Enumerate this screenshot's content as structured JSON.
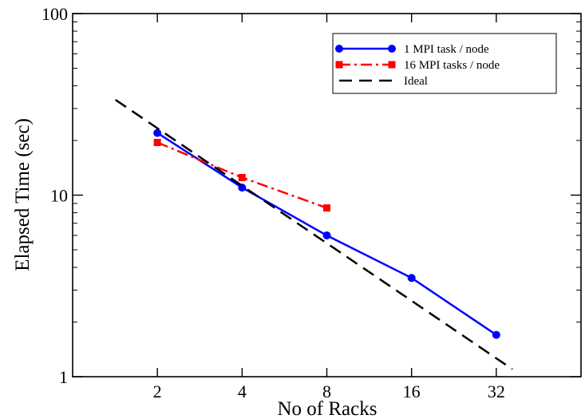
{
  "chart_data": {
    "type": "line",
    "xlabel": "No of Racks",
    "ylabel": "Elapsed Time (sec)",
    "x_scale": "log2",
    "y_scale": "log10",
    "xlim": [
      1,
      64
    ],
    "ylim": [
      1,
      100
    ],
    "x_ticks": [
      "2",
      "4",
      "8",
      "16",
      "32"
    ],
    "y_ticks": [
      "1",
      "10",
      "100"
    ],
    "legend_position": "top-right",
    "grid": false,
    "series": [
      {
        "name": "1 MPI task / node",
        "color": "#0000ff",
        "style": "solid",
        "marker": "circle",
        "x": [
          2,
          4,
          8,
          16,
          32
        ],
        "y": [
          22,
          11,
          6,
          3.5,
          1.7
        ]
      },
      {
        "name": "16 MPI tasks / node",
        "color": "#ff0000",
        "style": "dash-dot",
        "marker": "square",
        "x": [
          2,
          4,
          8
        ],
        "y": [
          19.5,
          12.5,
          8.5
        ]
      },
      {
        "name": "Ideal",
        "color": "#000000",
        "style": "dashed",
        "marker": "none",
        "x": [
          1.42,
          36.5
        ],
        "y": [
          33.5,
          1.1
        ]
      }
    ]
  }
}
